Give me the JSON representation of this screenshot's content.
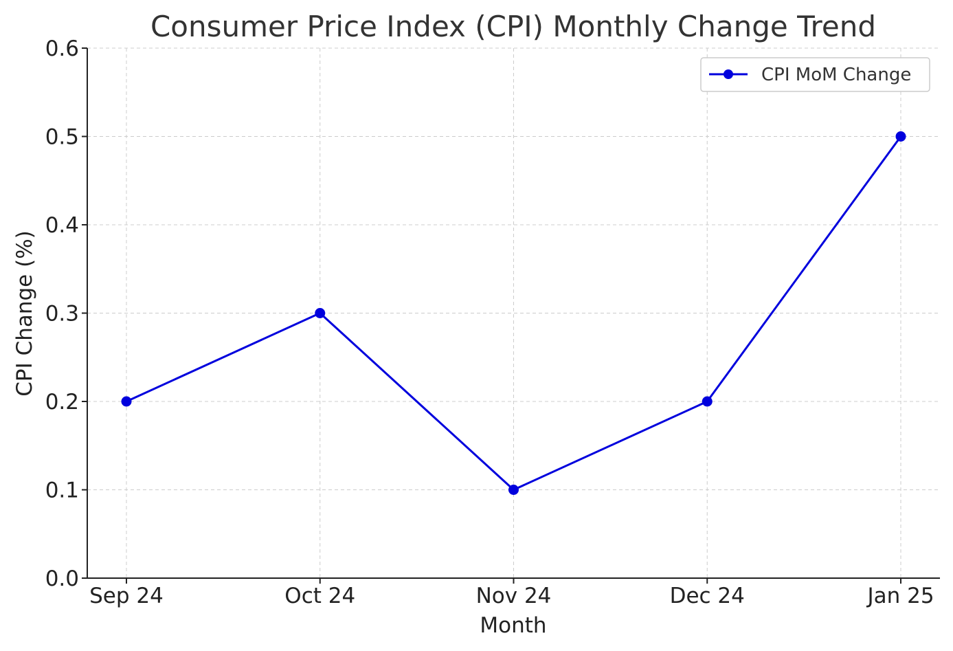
{
  "chart_data": {
    "type": "line",
    "title": "Consumer Price Index (CPI) Monthly Change Trend",
    "xlabel": "Month",
    "ylabel": "CPI Change (%)",
    "categories": [
      "Sep 24",
      "Oct 24",
      "Nov 24",
      "Dec 24",
      "Jan 25"
    ],
    "series": [
      {
        "name": "CPI MoM Change",
        "values": [
          0.2,
          0.3,
          0.1,
          0.2,
          0.5
        ],
        "color": "#0000dd"
      }
    ],
    "ylim": [
      0.0,
      0.6
    ],
    "yticks": [
      "0.0",
      "0.1",
      "0.2",
      "0.3",
      "0.4",
      "0.5",
      "0.6"
    ],
    "grid": true,
    "legend_position": "top-right"
  }
}
